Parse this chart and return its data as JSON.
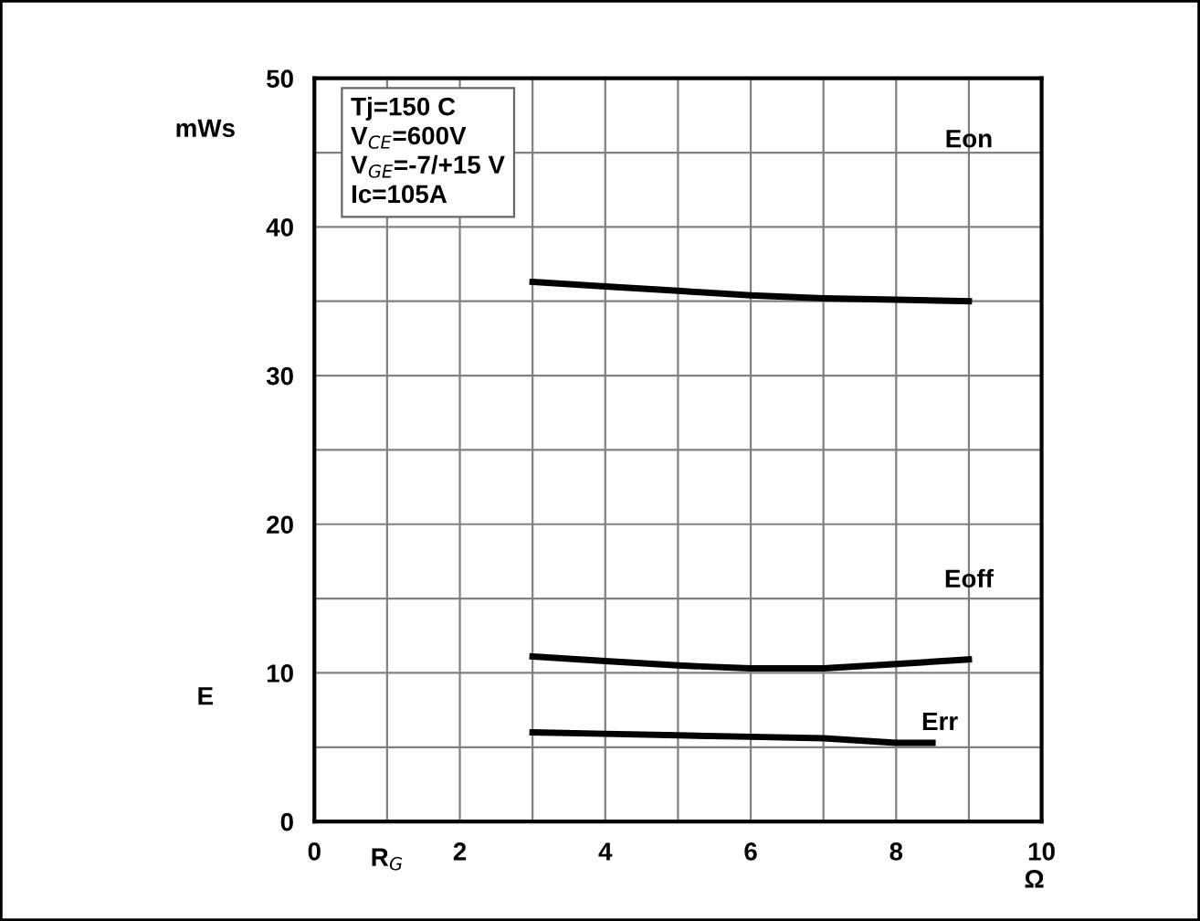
{
  "chart_data": {
    "type": "line",
    "xlabel": "R$_{G}$",
    "ylabel": "E",
    "annotations": [
      "Tj=150 C",
      "V$_{CE}$=600V",
      "V$_{GE}$=-7/+15 V",
      "Ic=105A",
      "mWs",
      "Ω"
    ],
    "xlim": [
      0,
      10
    ],
    "ylim": [
      0,
      50
    ],
    "xticks": [
      0,
      {
        "value": 1,
        "label": null
      },
      2,
      {
        "value": 3,
        "label": null
      },
      4,
      {
        "value": 5,
        "label": null
      },
      6,
      {
        "value": 7,
        "label": null
      },
      8,
      {
        "value": 9,
        "label": null
      },
      10
    ],
    "yticks": [
      0,
      {
        "value": 5,
        "label": null
      },
      10,
      {
        "value": 15,
        "label": null
      },
      20,
      {
        "value": 25,
        "label": null
      },
      30,
      {
        "value": 35,
        "label": null
      },
      40,
      {
        "value": 45,
        "label": null
      },
      50
    ],
    "grid": true,
    "line_style": "solid",
    "marker": "none",
    "series": [
      {
        "name": "Eon",
        "color": "#000000",
        "x": [
          3,
          4,
          5,
          6,
          7,
          8,
          9
        ],
        "values": [
          36.3,
          36.0,
          35.7,
          35.4,
          35.2,
          35.1,
          35.0
        ]
      },
      {
        "name": "Eoff",
        "color": "#000000",
        "x": [
          3,
          4,
          5,
          6,
          7,
          8,
          9
        ],
        "values": [
          11.1,
          10.8,
          10.5,
          10.3,
          10.3,
          10.6,
          10.9
        ]
      },
      {
        "name": "Err",
        "color": "#000000",
        "x": [
          3,
          4,
          5,
          6,
          7,
          8,
          8.5
        ],
        "values": [
          6.0,
          5.9,
          5.8,
          5.7,
          5.6,
          5.3,
          5.3
        ]
      }
    ]
  }
}
